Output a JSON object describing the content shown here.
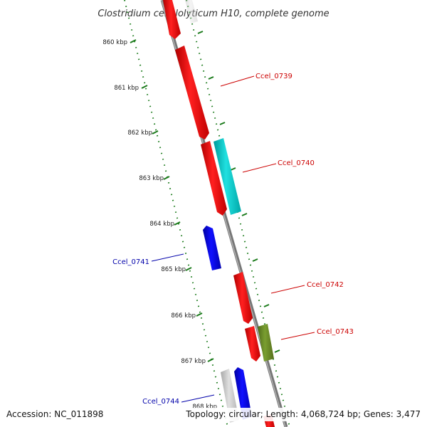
{
  "title": "Clostridium cellulolyticum H10, complete genome",
  "footer": {
    "accession": "Accession: NC_011898",
    "topology": "Topology: circular; Length: 4,068,724 bp; Genes: 3,477"
  },
  "ticks": [
    {
      "label": "860 kbp"
    },
    {
      "label": "861 kbp"
    },
    {
      "label": "862 kbp"
    },
    {
      "label": "863 kbp"
    },
    {
      "label": "864 kbp"
    },
    {
      "label": "865 kbp"
    },
    {
      "label": "866 kbp"
    },
    {
      "label": "867 kbp"
    },
    {
      "label": "868 kbp"
    }
  ],
  "gene_labels": [
    {
      "text": "Ccel_0739",
      "color": "#cc0000"
    },
    {
      "text": "Ccel_0740",
      "color": "#cc0000"
    },
    {
      "text": "Ccel_0741",
      "color": "#0000aa"
    },
    {
      "text": "Ccel_0742",
      "color": "#cc0000"
    },
    {
      "text": "Ccel_0743",
      "color": "#cc0000"
    },
    {
      "text": "Ccel_0744",
      "color": "#0000aa"
    }
  ],
  "colors": {
    "forward_gene": "#ff0000",
    "reverse_gene": "#0000ee",
    "cyan_gene": "#00cccc",
    "olive_gene": "#6b8e23",
    "grey_gene": "#c8c8c8",
    "backbone": "#888888",
    "tick_marks": "#1a7a1a"
  }
}
